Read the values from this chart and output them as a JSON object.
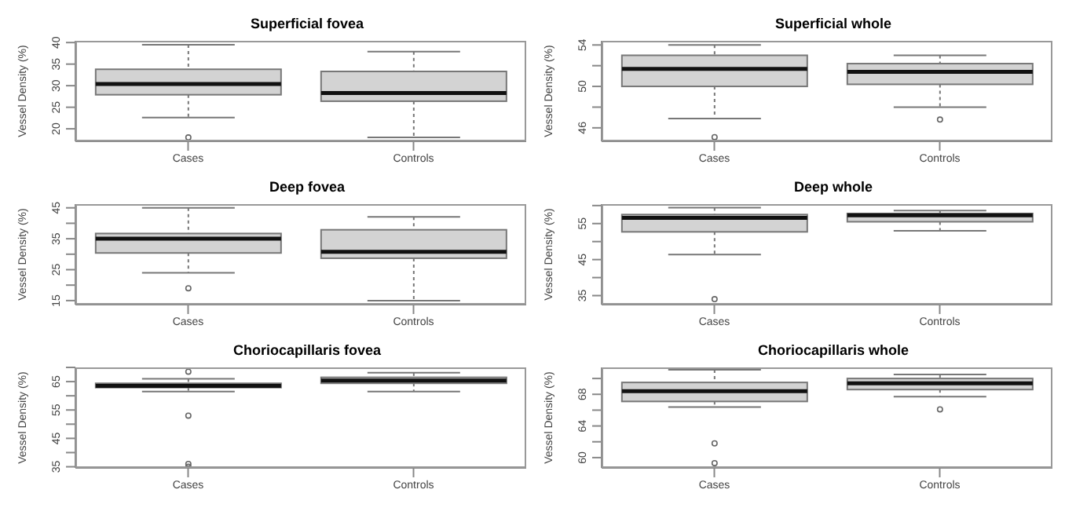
{
  "chart_data": [
    {
      "type": "box",
      "title": "Superficial fovea",
      "ylabel": "Vessel Density (%)",
      "categories": [
        "Cases",
        "Controls"
      ],
      "colors": [
        "#d3d3d3",
        "#d3d3d3"
      ],
      "ylim": [
        17.1,
        40.4
      ],
      "yticks": [
        20,
        25,
        30,
        35,
        40
      ],
      "grid": false,
      "legend": false,
      "boxes": [
        {
          "low": 22.6,
          "q1": 27.9,
          "median": 30.4,
          "q3": 33.8,
          "high": 39.5,
          "outliers": [
            18
          ]
        },
        {
          "low": 18,
          "q1": 26.4,
          "median": 28.3,
          "q3": 33.3,
          "high": 37.9
        }
      ]
    },
    {
      "type": "box",
      "title": "Superficial whole",
      "ylabel": "Vessel Density (%)",
      "categories": [
        "Cases",
        "Controls"
      ],
      "colors": [
        "#d3d3d3",
        "#d3d3d3"
      ],
      "ylim": [
        44.7,
        54.4
      ],
      "yticks": [
        46,
        {
          "value": 48,
          "label": null
        },
        50,
        {
          "value": 52,
          "label": null
        },
        54
      ],
      "grid": false,
      "legend": false,
      "boxes": [
        {
          "low": 46.9,
          "q1": 50,
          "median": 51.7,
          "q3": 53,
          "high": 54,
          "outliers": [
            45.1
          ]
        },
        {
          "low": 48,
          "q1": 50.2,
          "median": 51.4,
          "q3": 52.2,
          "high": 53,
          "outliers": [
            46.8
          ]
        }
      ]
    },
    {
      "type": "box",
      "title": "Deep fovea",
      "ylabel": "Vessel Density (%)",
      "categories": [
        "Cases",
        "Controls"
      ],
      "colors": [
        "#d3d3d3",
        "#d3d3d3"
      ],
      "ylim": [
        13.7,
        46.2
      ],
      "yticks": [
        15,
        {
          "value": 20,
          "label": null
        },
        25,
        {
          "value": 30,
          "label": null
        },
        35,
        {
          "value": 40,
          "label": null
        },
        45
      ],
      "grid": false,
      "legend": false,
      "boxes": [
        {
          "low": 24,
          "q1": 30.4,
          "median": 35,
          "q3": 36.7,
          "high": 45,
          "outliers": [
            19
          ]
        },
        {
          "low": 15,
          "q1": 28.7,
          "median": 30.8,
          "q3": 37.9,
          "high": 42.1
        }
      ]
    },
    {
      "type": "box",
      "title": "Deep whole",
      "ylabel": "Vessel Density (%)",
      "categories": [
        "Cases",
        "Controls"
      ],
      "colors": [
        "#d3d3d3",
        "#d3d3d3"
      ],
      "ylim": [
        32.5,
        60.4
      ],
      "yticks": [
        35,
        {
          "value": 40,
          "label": null
        },
        45,
        {
          "value": 50,
          "label": null
        },
        55,
        {
          "value": 60,
          "label": null
        }
      ],
      "grid": false,
      "legend": false,
      "boxes": [
        {
          "low": 46.4,
          "q1": 52.7,
          "median": 56.6,
          "q3": 57.5,
          "high": 59.4,
          "outliers": [
            34
          ]
        },
        {
          "low": 53,
          "q1": 55.5,
          "median": 57.3,
          "q3": 57.8,
          "high": 58.6
        }
      ]
    },
    {
      "type": "box",
      "title": "Choriocapillaris fovea",
      "ylabel": "Vessel Density (%)",
      "categories": [
        "Cases",
        "Controls"
      ],
      "colors": [
        "#d3d3d3",
        "#d3d3d3"
      ],
      "ylim": [
        34.6,
        70
      ],
      "yticks": [
        35,
        {
          "value": 40,
          "label": null
        },
        45,
        {
          "value": 50,
          "label": null
        },
        55,
        {
          "value": 60,
          "label": null
        },
        65,
        {
          "value": 70,
          "label": null
        }
      ],
      "grid": false,
      "legend": false,
      "boxes": [
        {
          "low": 61.5,
          "q1": 62.9,
          "median": 63.5,
          "q3": 64.4,
          "high": 66,
          "outliers": [
            68.5,
            53,
            36,
            35
          ]
        },
        {
          "low": 61.5,
          "q1": 64.4,
          "median": 65.4,
          "q3": 66.5,
          "high": 68.1
        }
      ]
    },
    {
      "type": "box",
      "title": "Choriocapillaris whole",
      "ylabel": "Vessel Density (%)",
      "categories": [
        "Cases",
        "Controls"
      ],
      "colors": [
        "#d3d3d3",
        "#d3d3d3"
      ],
      "ylim": [
        58.7,
        71.4
      ],
      "yticks": [
        60,
        {
          "value": 62,
          "label": null
        },
        64,
        {
          "value": 66,
          "label": null
        },
        68,
        {
          "value": 70,
          "label": null
        }
      ],
      "grid": false,
      "legend": false,
      "boxes": [
        {
          "low": 66.4,
          "q1": 67.1,
          "median": 68.4,
          "q3": 69.5,
          "high": 71.1,
          "outliers": [
            61.8,
            59.3
          ]
        },
        {
          "low": 67.7,
          "q1": 68.6,
          "median": 69.4,
          "q3": 70,
          "high": 70.5,
          "outliers": [
            66.1
          ]
        }
      ]
    }
  ]
}
